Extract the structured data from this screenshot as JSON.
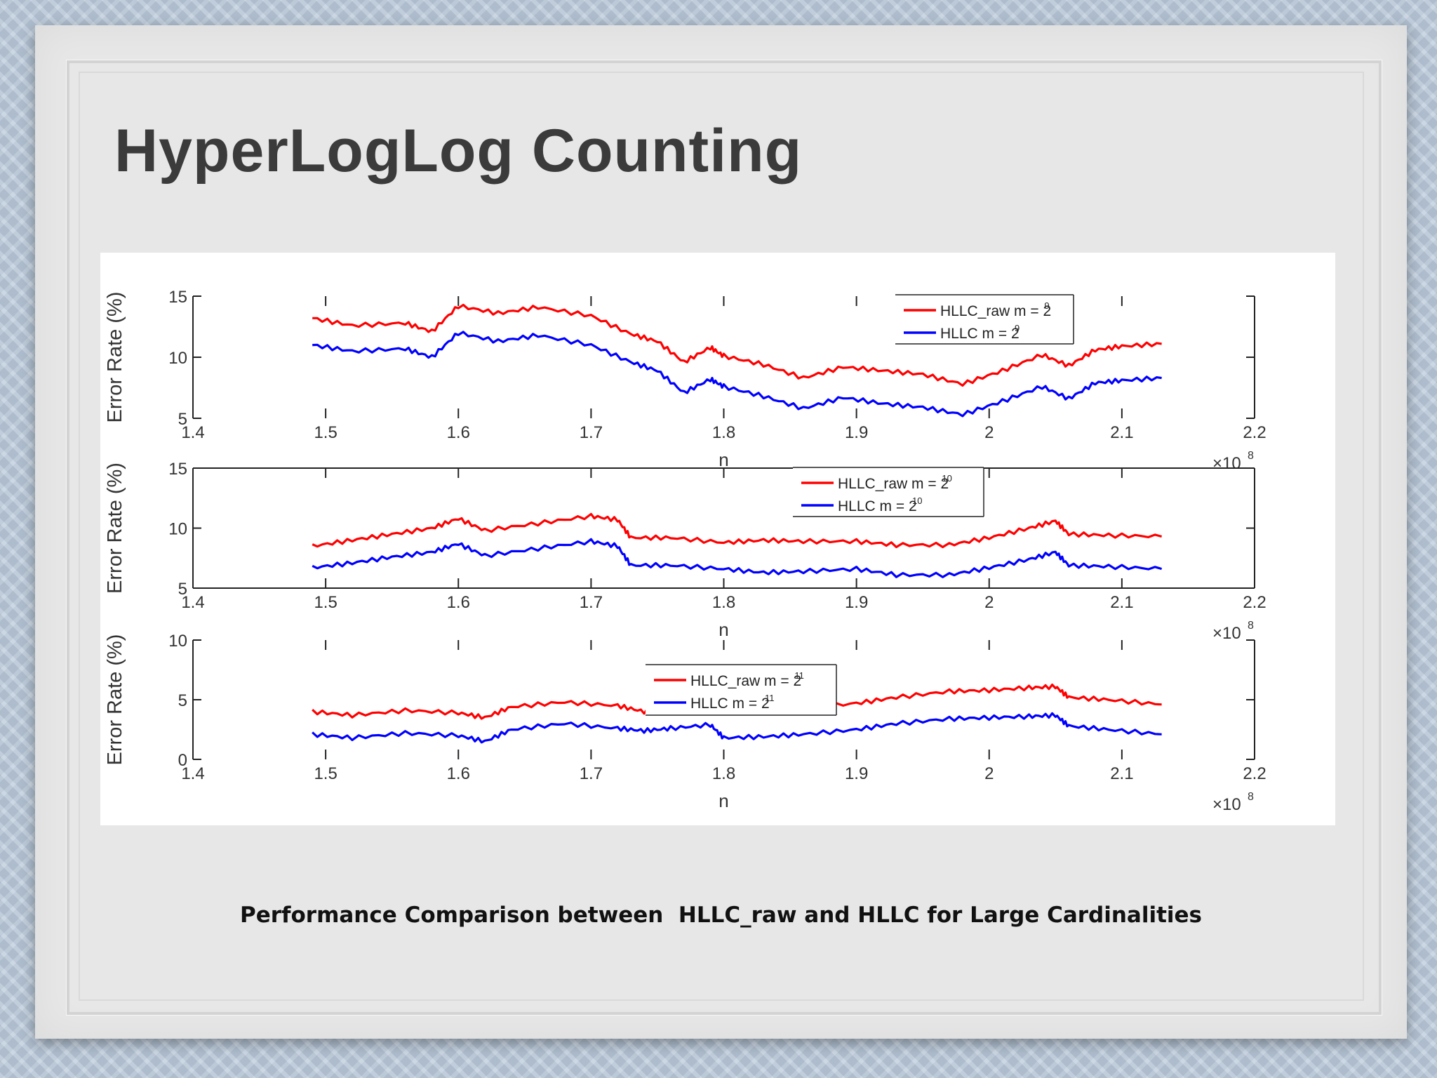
{
  "slide": {
    "title": "HyperLogLog Counting",
    "caption": "Performance Comparison between  HLLC_raw and HLLC for Large Cardinalities"
  },
  "chart_data": [
    {
      "type": "line",
      "xlabel": "n",
      "ylabel": "Error Rate (%)",
      "x_multiplier": "×10",
      "x_multiplier_exp": "8",
      "xlim": [
        1.4,
        2.2
      ],
      "ylim": [
        5,
        15
      ],
      "xticks": [
        "1.4",
        "1.5",
        "1.6",
        "1.7",
        "1.8",
        "1.9",
        "2",
        "2.1",
        "2.2"
      ],
      "yticks": [
        "5",
        "10",
        "15"
      ],
      "legend": "top-right",
      "series": [
        {
          "name": "HLLC_raw m = 2",
          "exp": "9",
          "color": "#ff0000",
          "x": [
            1.49,
            1.52,
            1.56,
            1.58,
            1.6,
            1.63,
            1.66,
            1.7,
            1.73,
            1.75,
            1.77,
            1.79,
            1.8,
            1.83,
            1.86,
            1.89,
            1.92,
            1.95,
            1.98,
            2.01,
            2.04,
            2.06,
            2.08,
            2.1,
            2.13
          ],
          "y": [
            13.2,
            12.6,
            12.8,
            12.1,
            14.2,
            13.6,
            14.1,
            13.4,
            11.9,
            11.3,
            9.6,
            10.8,
            10.1,
            9.4,
            8.3,
            9.2,
            8.9,
            8.6,
            7.8,
            8.9,
            10.2,
            9.3,
            10.6,
            10.9,
            11.1
          ]
        },
        {
          "name": "HLLC m = 2",
          "exp": "9",
          "color": "#0000ff",
          "x": [
            1.49,
            1.52,
            1.56,
            1.58,
            1.6,
            1.63,
            1.66,
            1.7,
            1.73,
            1.75,
            1.77,
            1.79,
            1.8,
            1.83,
            1.86,
            1.89,
            1.92,
            1.95,
            1.98,
            2.01,
            2.04,
            2.06,
            2.08,
            2.1,
            2.13
          ],
          "y": [
            11.0,
            10.5,
            10.7,
            10.0,
            12.0,
            11.3,
            11.8,
            11.0,
            9.6,
            8.9,
            7.1,
            8.2,
            7.6,
            6.8,
            5.8,
            6.7,
            6.2,
            5.9,
            5.3,
            6.4,
            7.6,
            6.6,
            7.9,
            8.1,
            8.3
          ]
        }
      ]
    },
    {
      "type": "line",
      "xlabel": "n",
      "ylabel": "Error Rate (%)",
      "x_multiplier": "×10",
      "x_multiplier_exp": "8",
      "xlim": [
        1.4,
        2.2
      ],
      "ylim": [
        5,
        15
      ],
      "xticks": [
        "1.4",
        "1.5",
        "1.6",
        "1.7",
        "1.8",
        "1.9",
        "2",
        "2.1",
        "2.2"
      ],
      "yticks": [
        "5",
        "10",
        "15"
      ],
      "legend": "top-center",
      "series": [
        {
          "name": "HLLC_raw m = 2",
          "exp": "10",
          "color": "#ff0000",
          "x": [
            1.49,
            1.52,
            1.55,
            1.58,
            1.6,
            1.62,
            1.66,
            1.7,
            1.72,
            1.73,
            1.76,
            1.8,
            1.83,
            1.86,
            1.9,
            1.93,
            1.97,
            2.0,
            2.03,
            2.05,
            2.06,
            2.09,
            2.13
          ],
          "y": [
            8.5,
            9.0,
            9.5,
            10.0,
            10.8,
            9.8,
            10.4,
            11.0,
            10.7,
            9.2,
            9.2,
            8.8,
            9.0,
            8.9,
            8.9,
            8.6,
            8.6,
            9.2,
            10.0,
            10.6,
            9.5,
            9.4,
            9.3
          ]
        },
        {
          "name": "HLLC m = 2",
          "exp": "10",
          "color": "#0000ff",
          "x": [
            1.49,
            1.52,
            1.55,
            1.58,
            1.6,
            1.62,
            1.66,
            1.7,
            1.72,
            1.73,
            1.76,
            1.8,
            1.83,
            1.86,
            1.9,
            1.93,
            1.97,
            2.0,
            2.03,
            2.05,
            2.06,
            2.09,
            2.13
          ],
          "y": [
            6.7,
            7.1,
            7.6,
            8.0,
            8.7,
            7.7,
            8.3,
            8.9,
            8.5,
            6.9,
            6.9,
            6.6,
            6.3,
            6.4,
            6.6,
            6.1,
            6.1,
            6.7,
            7.4,
            8.0,
            6.9,
            6.8,
            6.6
          ]
        }
      ]
    },
    {
      "type": "line",
      "xlabel": "n",
      "ylabel": "Error Rate (%)",
      "x_multiplier": "×10",
      "x_multiplier_exp": "8",
      "xlim": [
        1.4,
        2.2
      ],
      "ylim": [
        0,
        10
      ],
      "xticks": [
        "1.4",
        "1.5",
        "1.6",
        "1.7",
        "1.8",
        "1.9",
        "2",
        "2.1",
        "2.2"
      ],
      "yticks": [
        "0",
        "5",
        "10"
      ],
      "legend": "top-center",
      "series": [
        {
          "name": "HLLC_raw m = 2",
          "exp": "11",
          "color": "#ff0000",
          "x": [
            1.49,
            1.52,
            1.56,
            1.6,
            1.62,
            1.64,
            1.68,
            1.72,
            1.74,
            1.76,
            1.79,
            1.8,
            1.83,
            1.86,
            1.9,
            1.93,
            1.97,
            2.0,
            2.03,
            2.05,
            2.06,
            2.09,
            2.13
          ],
          "y": [
            4.0,
            3.7,
            4.1,
            3.9,
            3.5,
            4.4,
            4.8,
            4.5,
            4.0,
            4.5,
            4.7,
            4.0,
            4.0,
            4.3,
            4.7,
            5.2,
            5.7,
            5.8,
            6.0,
            6.1,
            5.2,
            5.0,
            4.6
          ]
        },
        {
          "name": "HLLC m = 2",
          "exp": "11",
          "color": "#0000ff",
          "x": [
            1.49,
            1.52,
            1.56,
            1.6,
            1.62,
            1.64,
            1.68,
            1.72,
            1.74,
            1.76,
            1.79,
            1.8,
            1.83,
            1.86,
            1.9,
            1.93,
            1.97,
            2.0,
            2.03,
            2.05,
            2.06,
            2.09,
            2.13
          ],
          "y": [
            2.1,
            1.8,
            2.2,
            2.0,
            1.5,
            2.5,
            3.0,
            2.6,
            2.4,
            2.6,
            2.9,
            1.8,
            1.9,
            2.1,
            2.5,
            3.0,
            3.4,
            3.5,
            3.6,
            3.7,
            2.8,
            2.5,
            2.1
          ]
        }
      ]
    }
  ]
}
